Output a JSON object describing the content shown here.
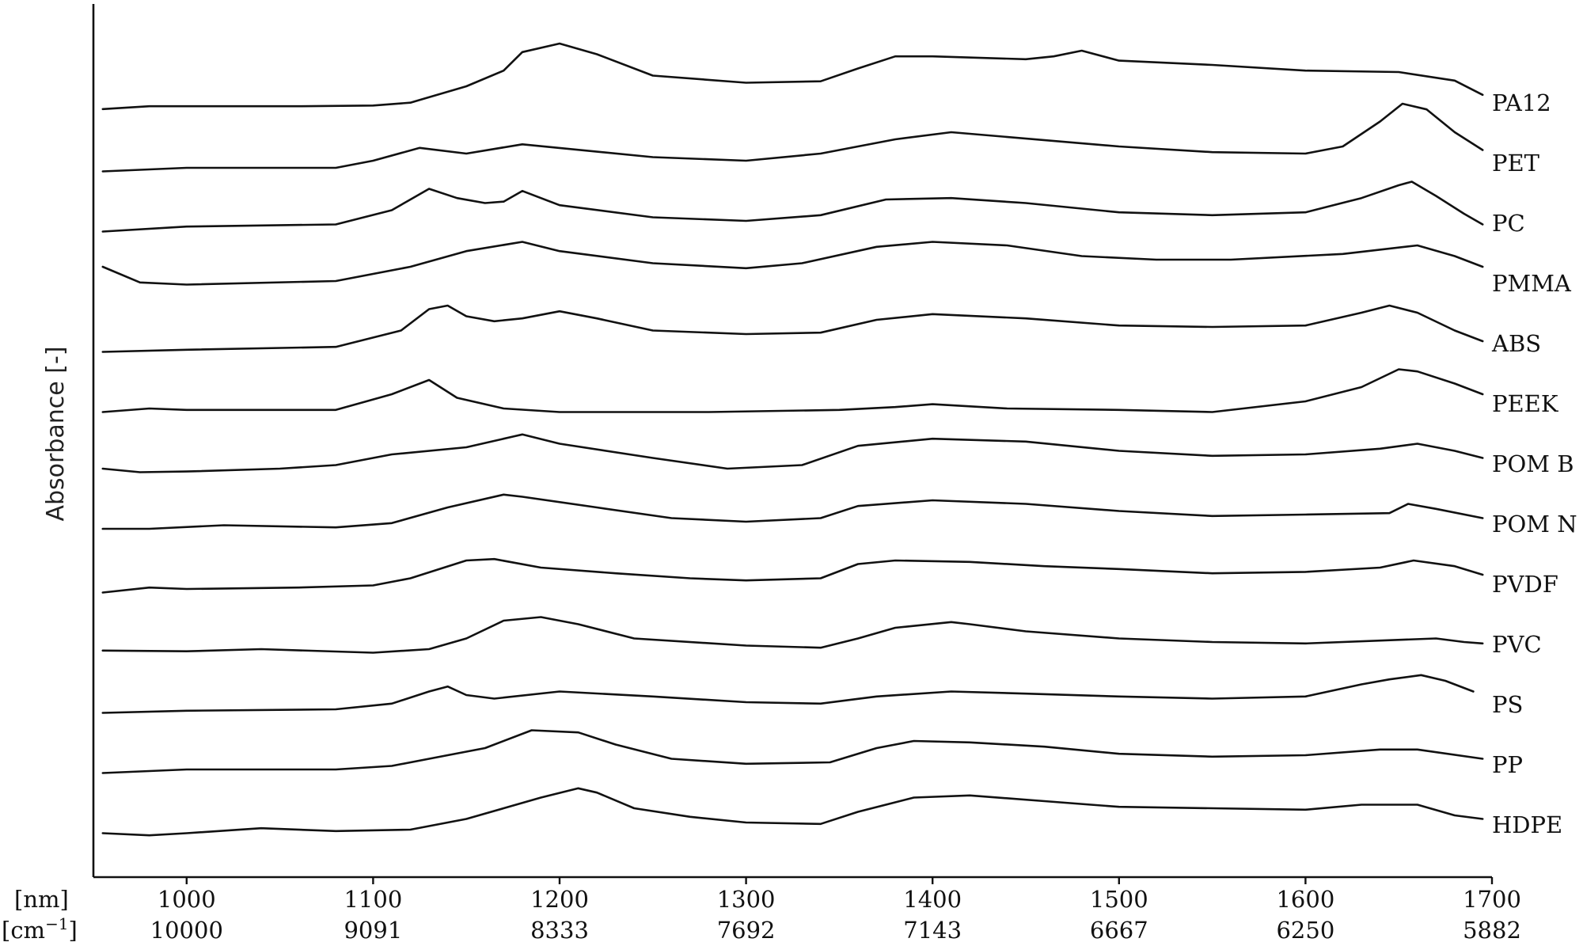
{
  "chart_data": {
    "type": "line",
    "ylabel": "Absorbance  [-]",
    "x_unit_label": "[nm]",
    "x2_unit_label": "[cm",
    "x2_unit_exponent": "−1",
    "x2_unit_close": "]",
    "xlim": [
      950,
      1700
    ],
    "x_ticks": [
      1000,
      1100,
      1200,
      1300,
      1400,
      1500,
      1600,
      1700
    ],
    "x2_ticks": [
      "10000",
      "9091",
      "8333",
      "7692",
      "7143",
      "6667",
      "6250",
      "5882"
    ],
    "y_scale": "relative absorbance, spectra vertically offset (stacked)",
    "grid": false,
    "series": [
      {
        "name": "PA12",
        "points": [
          [
            955,
            0.08
          ],
          [
            980,
            0.12
          ],
          [
            1000,
            0.12
          ],
          [
            1060,
            0.12
          ],
          [
            1100,
            0.13
          ],
          [
            1120,
            0.17
          ],
          [
            1150,
            0.4
          ],
          [
            1170,
            0.62
          ],
          [
            1180,
            0.88
          ],
          [
            1200,
            1.0
          ],
          [
            1220,
            0.85
          ],
          [
            1250,
            0.55
          ],
          [
            1300,
            0.45
          ],
          [
            1340,
            0.47
          ],
          [
            1360,
            0.65
          ],
          [
            1380,
            0.82
          ],
          [
            1400,
            0.82
          ],
          [
            1450,
            0.78
          ],
          [
            1465,
            0.82
          ],
          [
            1480,
            0.9
          ],
          [
            1500,
            0.76
          ],
          [
            1550,
            0.7
          ],
          [
            1600,
            0.62
          ],
          [
            1650,
            0.6
          ],
          [
            1680,
            0.48
          ],
          [
            1695,
            0.28
          ]
        ]
      },
      {
        "name": "PET",
        "points": [
          [
            955,
            0.05
          ],
          [
            1000,
            0.1
          ],
          [
            1080,
            0.1
          ],
          [
            1100,
            0.2
          ],
          [
            1125,
            0.38
          ],
          [
            1150,
            0.3
          ],
          [
            1180,
            0.43
          ],
          [
            1250,
            0.25
          ],
          [
            1300,
            0.2
          ],
          [
            1340,
            0.3
          ],
          [
            1380,
            0.5
          ],
          [
            1410,
            0.6
          ],
          [
            1500,
            0.4
          ],
          [
            1550,
            0.32
          ],
          [
            1600,
            0.3
          ],
          [
            1620,
            0.4
          ],
          [
            1640,
            0.75
          ],
          [
            1652,
            1.0
          ],
          [
            1665,
            0.92
          ],
          [
            1680,
            0.6
          ],
          [
            1695,
            0.35
          ]
        ]
      },
      {
        "name": "PC",
        "points": [
          [
            955,
            0.05
          ],
          [
            1000,
            0.12
          ],
          [
            1080,
            0.15
          ],
          [
            1110,
            0.35
          ],
          [
            1130,
            0.65
          ],
          [
            1145,
            0.52
          ],
          [
            1160,
            0.45
          ],
          [
            1170,
            0.47
          ],
          [
            1180,
            0.62
          ],
          [
            1200,
            0.42
          ],
          [
            1250,
            0.25
          ],
          [
            1300,
            0.2
          ],
          [
            1340,
            0.28
          ],
          [
            1375,
            0.5
          ],
          [
            1410,
            0.52
          ],
          [
            1450,
            0.45
          ],
          [
            1500,
            0.32
          ],
          [
            1550,
            0.28
          ],
          [
            1600,
            0.32
          ],
          [
            1630,
            0.52
          ],
          [
            1650,
            0.7
          ],
          [
            1657,
            0.75
          ],
          [
            1670,
            0.55
          ],
          [
            1685,
            0.3
          ],
          [
            1695,
            0.15
          ]
        ]
      },
      {
        "name": "PMMA",
        "points": [
          [
            955,
            0.4
          ],
          [
            975,
            0.18
          ],
          [
            1000,
            0.15
          ],
          [
            1080,
            0.2
          ],
          [
            1120,
            0.4
          ],
          [
            1150,
            0.62
          ],
          [
            1180,
            0.75
          ],
          [
            1200,
            0.62
          ],
          [
            1250,
            0.45
          ],
          [
            1300,
            0.38
          ],
          [
            1330,
            0.45
          ],
          [
            1370,
            0.68
          ],
          [
            1400,
            0.75
          ],
          [
            1440,
            0.7
          ],
          [
            1480,
            0.55
          ],
          [
            1520,
            0.5
          ],
          [
            1560,
            0.5
          ],
          [
            1620,
            0.58
          ],
          [
            1660,
            0.7
          ],
          [
            1680,
            0.55
          ],
          [
            1695,
            0.4
          ]
        ]
      },
      {
        "name": "ABS",
        "points": [
          [
            955,
            0.05
          ],
          [
            1000,
            0.08
          ],
          [
            1080,
            0.12
          ],
          [
            1115,
            0.35
          ],
          [
            1130,
            0.65
          ],
          [
            1140,
            0.7
          ],
          [
            1150,
            0.55
          ],
          [
            1165,
            0.48
          ],
          [
            1180,
            0.52
          ],
          [
            1200,
            0.62
          ],
          [
            1220,
            0.52
          ],
          [
            1250,
            0.35
          ],
          [
            1300,
            0.3
          ],
          [
            1340,
            0.32
          ],
          [
            1370,
            0.5
          ],
          [
            1400,
            0.58
          ],
          [
            1450,
            0.52
          ],
          [
            1500,
            0.42
          ],
          [
            1550,
            0.4
          ],
          [
            1600,
            0.42
          ],
          [
            1630,
            0.6
          ],
          [
            1645,
            0.7
          ],
          [
            1660,
            0.6
          ],
          [
            1680,
            0.35
          ],
          [
            1695,
            0.2
          ]
        ]
      },
      {
        "name": "PEEK",
        "points": [
          [
            955,
            0.05
          ],
          [
            980,
            0.1
          ],
          [
            1000,
            0.08
          ],
          [
            1080,
            0.08
          ],
          [
            1110,
            0.3
          ],
          [
            1130,
            0.5
          ],
          [
            1145,
            0.25
          ],
          [
            1170,
            0.1
          ],
          [
            1200,
            0.05
          ],
          [
            1280,
            0.05
          ],
          [
            1350,
            0.08
          ],
          [
            1380,
            0.12
          ],
          [
            1400,
            0.16
          ],
          [
            1440,
            0.1
          ],
          [
            1500,
            0.08
          ],
          [
            1550,
            0.05
          ],
          [
            1600,
            0.2
          ],
          [
            1630,
            0.4
          ],
          [
            1650,
            0.65
          ],
          [
            1660,
            0.62
          ],
          [
            1680,
            0.45
          ],
          [
            1695,
            0.3
          ]
        ]
      },
      {
        "name": "POM B",
        "points": [
          [
            955,
            0.1
          ],
          [
            975,
            0.05
          ],
          [
            1000,
            0.06
          ],
          [
            1050,
            0.1
          ],
          [
            1080,
            0.15
          ],
          [
            1110,
            0.3
          ],
          [
            1150,
            0.4
          ],
          [
            1175,
            0.55
          ],
          [
            1180,
            0.58
          ],
          [
            1200,
            0.45
          ],
          [
            1250,
            0.25
          ],
          [
            1290,
            0.1
          ],
          [
            1330,
            0.15
          ],
          [
            1360,
            0.42
          ],
          [
            1400,
            0.52
          ],
          [
            1450,
            0.48
          ],
          [
            1500,
            0.35
          ],
          [
            1550,
            0.28
          ],
          [
            1600,
            0.3
          ],
          [
            1640,
            0.38
          ],
          [
            1660,
            0.45
          ],
          [
            1680,
            0.35
          ],
          [
            1695,
            0.25
          ]
        ]
      },
      {
        "name": "POM N",
        "points": [
          [
            955,
            0.1
          ],
          [
            980,
            0.1
          ],
          [
            1020,
            0.15
          ],
          [
            1080,
            0.12
          ],
          [
            1110,
            0.18
          ],
          [
            1140,
            0.4
          ],
          [
            1170,
            0.58
          ],
          [
            1180,
            0.55
          ],
          [
            1220,
            0.4
          ],
          [
            1260,
            0.25
          ],
          [
            1300,
            0.2
          ],
          [
            1340,
            0.25
          ],
          [
            1360,
            0.42
          ],
          [
            1400,
            0.5
          ],
          [
            1450,
            0.45
          ],
          [
            1500,
            0.35
          ],
          [
            1550,
            0.28
          ],
          [
            1600,
            0.3
          ],
          [
            1645,
            0.32
          ],
          [
            1655,
            0.45
          ],
          [
            1670,
            0.38
          ],
          [
            1695,
            0.25
          ]
        ]
      },
      {
        "name": "PVDF",
        "points": [
          [
            955,
            0.05
          ],
          [
            980,
            0.12
          ],
          [
            1000,
            0.1
          ],
          [
            1060,
            0.12
          ],
          [
            1100,
            0.15
          ],
          [
            1120,
            0.25
          ],
          [
            1150,
            0.5
          ],
          [
            1165,
            0.52
          ],
          [
            1190,
            0.4
          ],
          [
            1230,
            0.32
          ],
          [
            1270,
            0.25
          ],
          [
            1300,
            0.22
          ],
          [
            1340,
            0.25
          ],
          [
            1360,
            0.45
          ],
          [
            1380,
            0.5
          ],
          [
            1420,
            0.48
          ],
          [
            1460,
            0.42
          ],
          [
            1500,
            0.38
          ],
          [
            1550,
            0.32
          ],
          [
            1600,
            0.34
          ],
          [
            1640,
            0.4
          ],
          [
            1658,
            0.5
          ],
          [
            1680,
            0.42
          ],
          [
            1695,
            0.3
          ]
        ]
      },
      {
        "name": "PVC",
        "points": [
          [
            955,
            0.08
          ],
          [
            1000,
            0.07
          ],
          [
            1040,
            0.1
          ],
          [
            1100,
            0.05
          ],
          [
            1130,
            0.1
          ],
          [
            1150,
            0.25
          ],
          [
            1170,
            0.5
          ],
          [
            1190,
            0.55
          ],
          [
            1210,
            0.45
          ],
          [
            1240,
            0.25
          ],
          [
            1300,
            0.15
          ],
          [
            1340,
            0.12
          ],
          [
            1360,
            0.25
          ],
          [
            1380,
            0.4
          ],
          [
            1410,
            0.48
          ],
          [
            1420,
            0.45
          ],
          [
            1450,
            0.35
          ],
          [
            1500,
            0.25
          ],
          [
            1550,
            0.2
          ],
          [
            1600,
            0.18
          ],
          [
            1640,
            0.22
          ],
          [
            1670,
            0.25
          ],
          [
            1685,
            0.2
          ],
          [
            1695,
            0.18
          ]
        ]
      },
      {
        "name": "PS",
        "points": [
          [
            955,
            0.05
          ],
          [
            1000,
            0.08
          ],
          [
            1080,
            0.1
          ],
          [
            1110,
            0.18
          ],
          [
            1130,
            0.35
          ],
          [
            1140,
            0.42
          ],
          [
            1150,
            0.3
          ],
          [
            1165,
            0.25
          ],
          [
            1200,
            0.35
          ],
          [
            1250,
            0.28
          ],
          [
            1300,
            0.2
          ],
          [
            1340,
            0.18
          ],
          [
            1370,
            0.28
          ],
          [
            1410,
            0.35
          ],
          [
            1450,
            0.32
          ],
          [
            1500,
            0.28
          ],
          [
            1550,
            0.25
          ],
          [
            1600,
            0.28
          ],
          [
            1630,
            0.45
          ],
          [
            1645,
            0.52
          ],
          [
            1662,
            0.58
          ],
          [
            1675,
            0.5
          ],
          [
            1690,
            0.35
          ]
        ]
      },
      {
        "name": "PP",
        "points": [
          [
            955,
            0.05
          ],
          [
            1000,
            0.1
          ],
          [
            1080,
            0.1
          ],
          [
            1110,
            0.15
          ],
          [
            1140,
            0.3
          ],
          [
            1160,
            0.4
          ],
          [
            1185,
            0.65
          ],
          [
            1210,
            0.62
          ],
          [
            1230,
            0.45
          ],
          [
            1260,
            0.25
          ],
          [
            1300,
            0.18
          ],
          [
            1345,
            0.2
          ],
          [
            1370,
            0.4
          ],
          [
            1390,
            0.5
          ],
          [
            1420,
            0.48
          ],
          [
            1460,
            0.42
          ],
          [
            1500,
            0.32
          ],
          [
            1550,
            0.28
          ],
          [
            1600,
            0.3
          ],
          [
            1640,
            0.38
          ],
          [
            1660,
            0.38
          ],
          [
            1695,
            0.25
          ]
        ]
      },
      {
        "name": "HDPE",
        "points": [
          [
            955,
            0.05
          ],
          [
            980,
            0.02
          ],
          [
            1000,
            0.05
          ],
          [
            1040,
            0.12
          ],
          [
            1080,
            0.08
          ],
          [
            1120,
            0.1
          ],
          [
            1150,
            0.25
          ],
          [
            1170,
            0.4
          ],
          [
            1190,
            0.55
          ],
          [
            1210,
            0.68
          ],
          [
            1220,
            0.62
          ],
          [
            1240,
            0.4
          ],
          [
            1270,
            0.28
          ],
          [
            1300,
            0.2
          ],
          [
            1340,
            0.18
          ],
          [
            1360,
            0.35
          ],
          [
            1390,
            0.55
          ],
          [
            1420,
            0.58
          ],
          [
            1460,
            0.5
          ],
          [
            1500,
            0.42
          ],
          [
            1550,
            0.4
          ],
          [
            1600,
            0.38
          ],
          [
            1630,
            0.45
          ],
          [
            1660,
            0.45
          ],
          [
            1680,
            0.3
          ],
          [
            1695,
            0.25
          ]
        ]
      }
    ]
  }
}
